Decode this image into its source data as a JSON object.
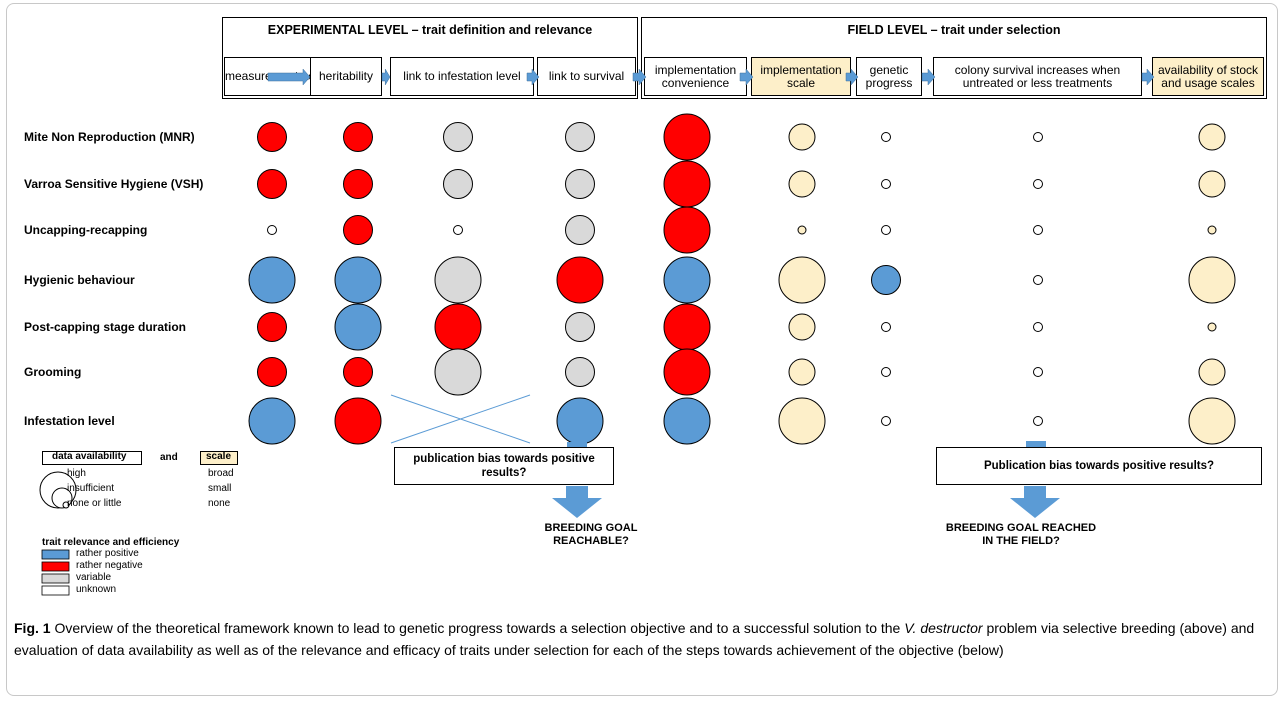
{
  "headers": {
    "experimental": "EXPERIMENTAL LEVEL – trait definition and relevance",
    "field": "FIELD LEVEL – trait under selection"
  },
  "steps": [
    {
      "label": "measurement accuracy",
      "tan": false
    },
    {
      "label": "heritability",
      "tan": false
    },
    {
      "label": "link to infestation level",
      "tan": false
    },
    {
      "label": "link to survival",
      "tan": false
    },
    {
      "label": "implementation convenience",
      "tan": false
    },
    {
      "label": "implementation scale",
      "tan": true
    },
    {
      "label": "genetic progress",
      "tan": false
    },
    {
      "label": "colony survival increases when untreated or less treatments",
      "tan": false
    },
    {
      "label": "availability of stock and usage scales",
      "tan": true
    }
  ],
  "traits": [
    {
      "label": "Mite Non Reproduction (MNR)",
      "cells": [
        "rn-m",
        "rn-m",
        "v-m",
        "v-m",
        "rn-l",
        "t-m",
        "u-s",
        "u-s",
        "t-m"
      ]
    },
    {
      "label": "Varroa Sensitive Hygiene (VSH)",
      "cells": [
        "rn-m",
        "rn-m",
        "v-m",
        "v-m",
        "rn-l",
        "t-m",
        "u-s",
        "u-s",
        "t-m"
      ]
    },
    {
      "label": "Uncapping-recapping",
      "cells": [
        "u-s",
        "rn-m",
        "u-s",
        "v-m",
        "rn-l",
        "t-s",
        "u-s",
        "u-s",
        "t-s"
      ]
    },
    {
      "label": "Hygienic behaviour",
      "cells": [
        "rp-l",
        "rp-l",
        "v-l",
        "rn-l",
        "rp-l",
        "t-l",
        "rp-m",
        "u-s",
        "t-l"
      ]
    },
    {
      "label": "Post-capping stage duration",
      "cells": [
        "rn-m",
        "rp-l",
        "rn-l",
        "v-m",
        "rn-l",
        "t-m",
        "u-s",
        "u-s",
        "t-s"
      ]
    },
    {
      "label": "Grooming",
      "cells": [
        "rn-m",
        "rn-m",
        "v-l",
        "v-m",
        "rn-l",
        "t-m",
        "u-s",
        "u-s",
        "t-m"
      ]
    },
    {
      "label": "Infestation level",
      "cells": [
        "rp-l",
        "rn-l",
        "x",
        "rp-l",
        "rp-l",
        "t-l",
        "u-s",
        "u-s",
        "t-l"
      ]
    }
  ],
  "publication_bias": {
    "left": "publication bias towards positive results?",
    "right": "Publication bias towards positive results?"
  },
  "goals": {
    "left": "BREEDING GOAL REACHABLE?",
    "right": "BREEDING GOAL REACHED IN THE FIELD?"
  },
  "legend": {
    "data_availability": "data availability",
    "and": "and",
    "scale": "scale",
    "levels": [
      {
        "availability": "high",
        "scale": "broad"
      },
      {
        "availability": "insufficient",
        "scale": "small"
      },
      {
        "availability": "none or little",
        "scale": "none"
      }
    ],
    "relevance_title": "trait relevance and efficiency",
    "relevance_items": [
      {
        "label": "rather positive",
        "color": "#5b9bd5"
      },
      {
        "label": "rather negative",
        "color": "#ff0000"
      },
      {
        "label": "variable",
        "color": "#d9d9d9"
      },
      {
        "label": "unknown",
        "color": "#ffffff"
      }
    ]
  },
  "colors": {
    "positive": "#5b9bd5",
    "negative": "#ff0000",
    "variable": "#d9d9d9",
    "unknown": "#ffffff",
    "scale": "#fdefc9",
    "arrow": "#5b9bd5"
  },
  "caption": {
    "fig": "Fig. 1",
    "text1": "Overview of the theoretical framework known to lead to genetic progress towards a selection objective and to a successful solution to the",
    "italic": "V. destructor",
    "text2": "problem via selective breeding (above) and evaluation of data availability as well as of the relevance and efficacy of traits under selection for each of the steps towards achievement of the objective (below)"
  }
}
